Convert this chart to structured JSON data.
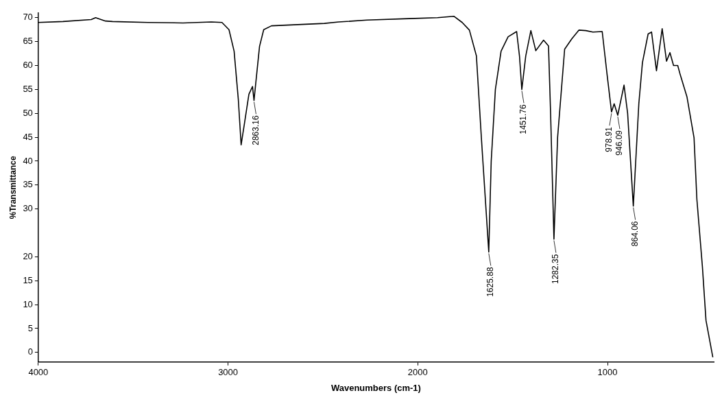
{
  "chart_data": {
    "type": "line",
    "xlabel": "Wavenumbers (cm-1)",
    "ylabel": "%Transmittance",
    "xlim": [
      4000,
      440
    ],
    "xticks": [
      4000,
      3000,
      2000,
      1000
    ],
    "ylim": [
      -2,
      71
    ],
    "yticks": [
      0,
      5,
      10,
      15,
      20,
      30,
      35,
      40,
      45,
      50,
      55,
      60,
      65,
      70
    ],
    "grid": false,
    "series": [
      {
        "color": "#000000",
        "x": [
          4000,
          3870,
          3721,
          3698,
          3646,
          3609,
          3423,
          3237,
          3088,
          3032,
          2995,
          2968,
          2946,
          2931,
          2913,
          2890,
          2871,
          2863.16,
          2834,
          2812,
          2771,
          2492,
          2417,
          2268,
          2045,
          1896,
          1810,
          1766,
          1728,
          1691,
          1665,
          1625.88,
          1613,
          1591,
          1561,
          1524,
          1479,
          1464,
          1451.76,
          1431,
          1404,
          1378,
          1337,
          1311,
          1300,
          1282.35,
          1263,
          1226,
          1188,
          1151,
          1114,
          1077,
          1028,
          1002,
          978.91,
          965,
          946.09,
          913,
          894,
          864.06,
          835,
          816,
          786,
          768,
          742,
          712,
          689,
          671,
          652,
          630,
          619,
          581,
          544,
          529,
          500,
          481,
          445
        ],
        "values": [
          69,
          69.2,
          69.6,
          70,
          69.3,
          69.2,
          69,
          68.9,
          69.1,
          69,
          67.5,
          63,
          53,
          43.4,
          48,
          54,
          55.6,
          52.7,
          64,
          67.5,
          68.3,
          68.8,
          69.1,
          69.5,
          69.8,
          70,
          70.3,
          69,
          67.4,
          62,
          45,
          21,
          40,
          55,
          63,
          66,
          67.1,
          62,
          55,
          62,
          67.3,
          63.1,
          65.3,
          64.1,
          50,
          23.7,
          45,
          63.4,
          65.6,
          67.4,
          67.3,
          67,
          67.1,
          58,
          50.3,
          52,
          49.6,
          55.9,
          50,
          30.6,
          52,
          60.6,
          66.6,
          67,
          58.9,
          67.7,
          60.9,
          62.7,
          60,
          60,
          58.4,
          53.4,
          44.9,
          32,
          18,
          6.7,
          -1
        ]
      }
    ],
    "annotations": [
      {
        "text": "2863.16",
        "x": 2863.16,
        "y": 52.7
      },
      {
        "text": "1625.88",
        "x": 1625.88,
        "y": 21
      },
      {
        "text": "1451.76",
        "x": 1451.76,
        "y": 55
      },
      {
        "text": "1282.35",
        "x": 1282.35,
        "y": 23.7
      },
      {
        "text": "978.91",
        "x": 978.91,
        "y": 50.3
      },
      {
        "text": "946.09",
        "x": 946.09,
        "y": 49.6
      },
      {
        "text": "864.06",
        "x": 864.06,
        "y": 30.6
      }
    ]
  }
}
